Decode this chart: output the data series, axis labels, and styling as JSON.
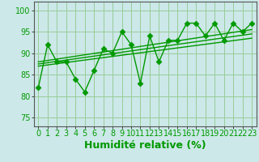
{
  "xlabel": "Humidité relative (%)",
  "bg_color": "#cce8e8",
  "grid_color": "#99cc99",
  "line_color": "#009900",
  "xlim": [
    -0.5,
    23.5
  ],
  "ylim": [
    73,
    102
  ],
  "yticks": [
    75,
    80,
    85,
    90,
    95,
    100
  ],
  "xticks": [
    0,
    1,
    2,
    3,
    4,
    5,
    6,
    7,
    8,
    9,
    10,
    11,
    12,
    13,
    14,
    15,
    16,
    17,
    18,
    19,
    20,
    21,
    22,
    23
  ],
  "main_y": [
    82,
    92,
    88,
    88,
    84,
    81,
    86,
    91,
    90,
    95,
    92,
    83,
    94,
    88,
    93,
    93,
    97,
    97,
    94,
    97,
    93,
    97,
    95,
    97
  ],
  "reg_lines": [
    {
      "x": [
        0,
        23
      ],
      "y": [
        87.0,
        93.5
      ]
    },
    {
      "x": [
        0,
        23
      ],
      "y": [
        87.5,
        94.5
      ]
    },
    {
      "x": [
        0,
        23
      ],
      "y": [
        88.0,
        95.5
      ]
    }
  ],
  "xlabel_fontsize": 9,
  "tick_fontsize": 7,
  "marker_size": 3.5
}
